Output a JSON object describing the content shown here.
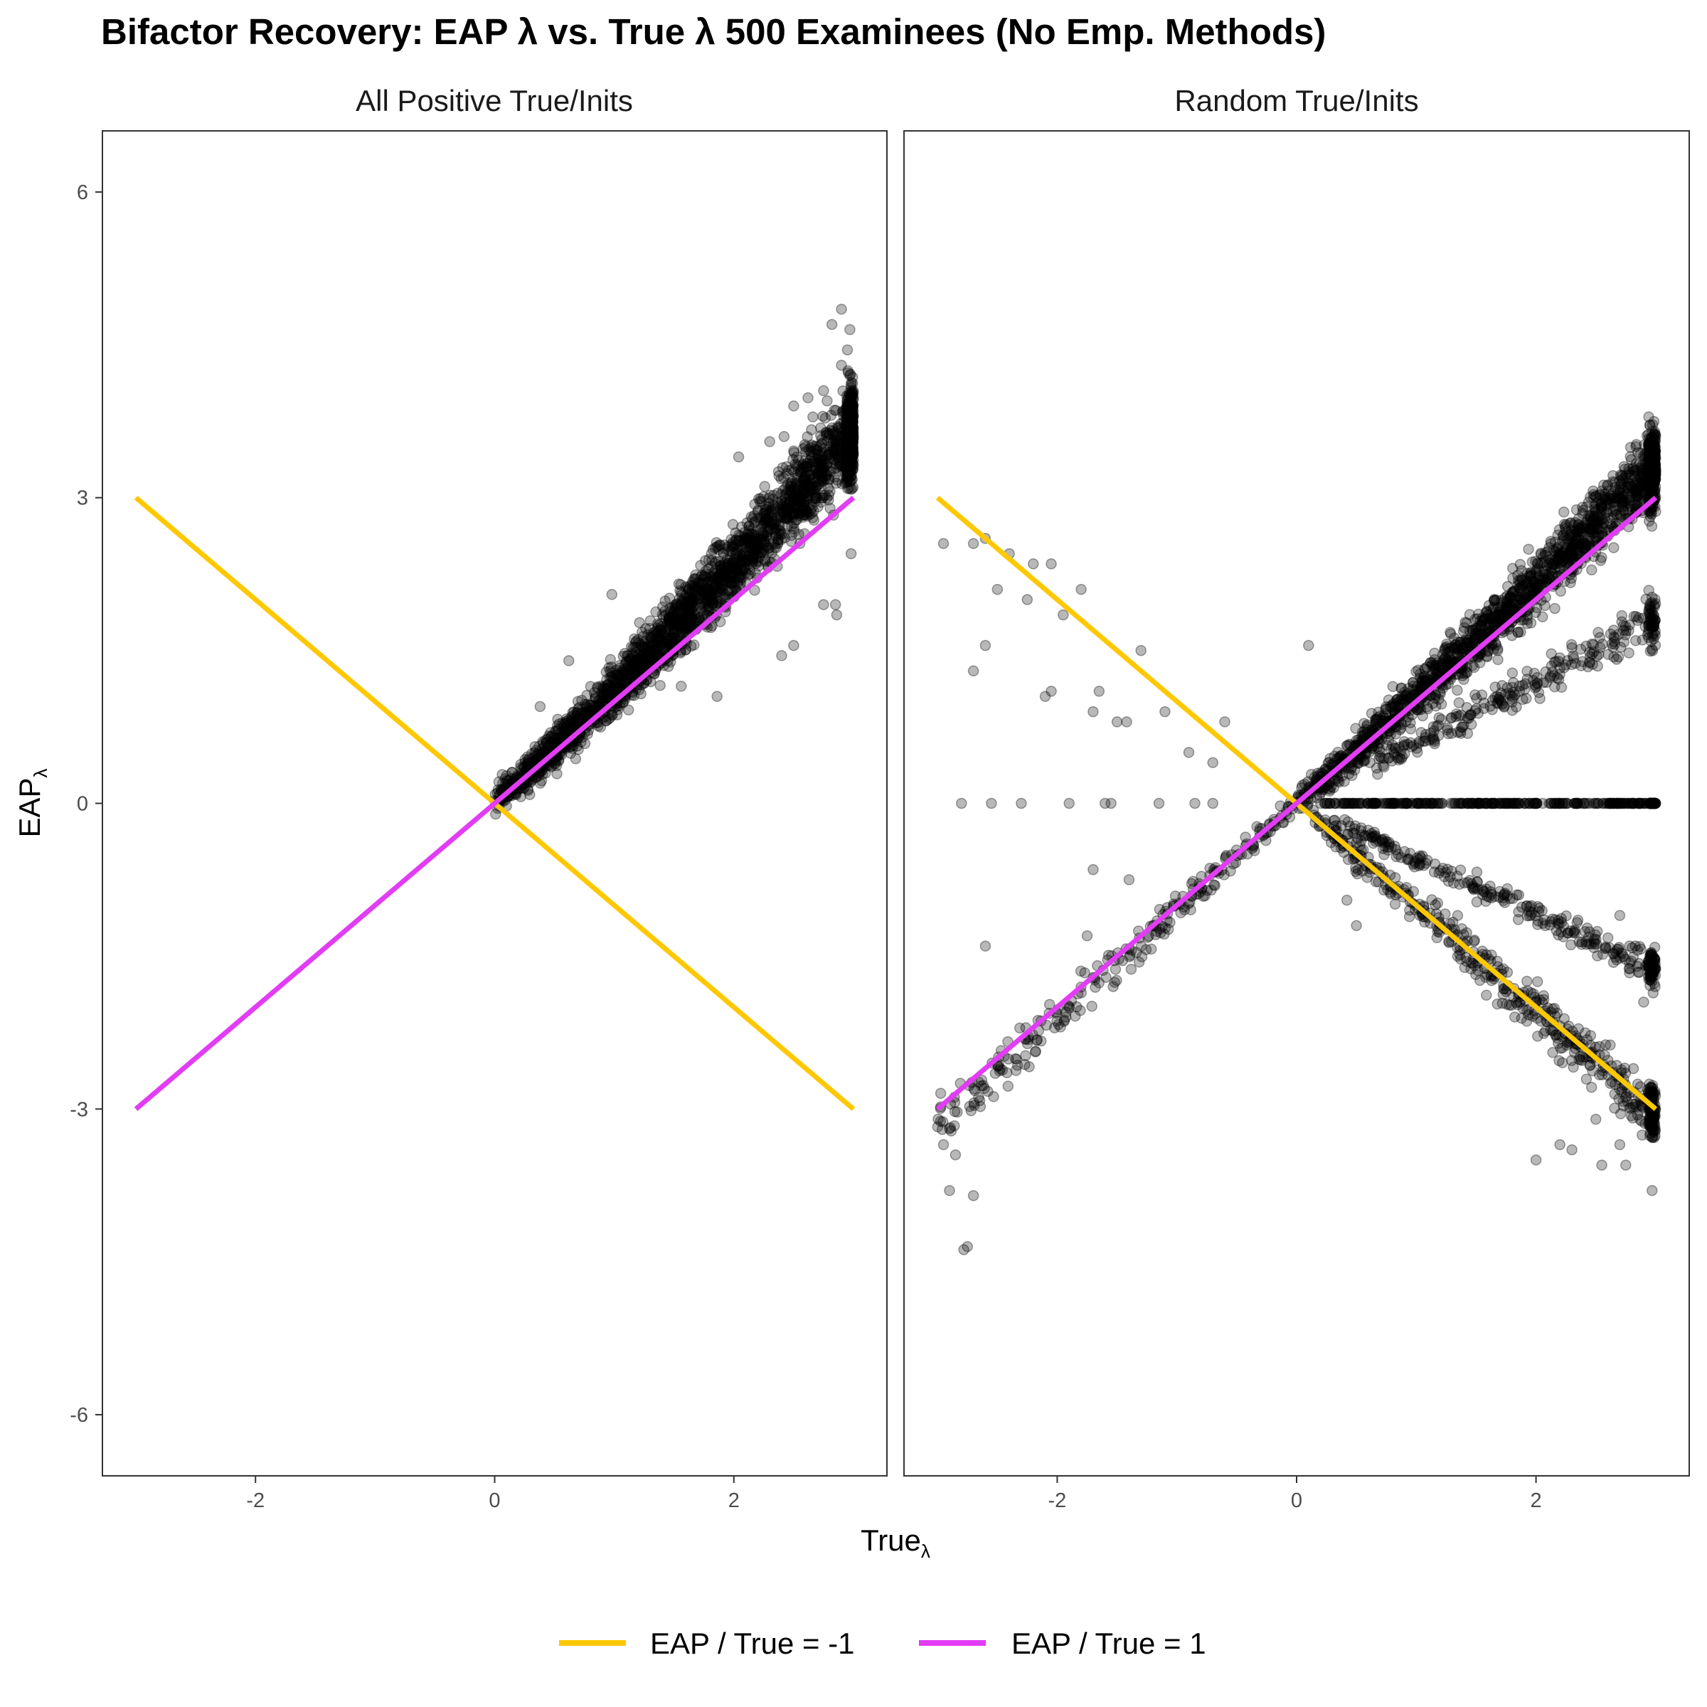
{
  "chart_data": {
    "type": "scatter",
    "title": "Bifactor Recovery: EAP λ vs. True λ 500 Examinees (No Emp. Methods)",
    "xlabel": "True",
    "xlabel_sub": "λ",
    "ylabel": "EAP",
    "ylabel_sub": "λ",
    "xlim": [
      -3.28,
      3.28
    ],
    "ylim": [
      -6.6,
      6.6
    ],
    "x_ticks": [
      -2,
      0,
      2
    ],
    "y_ticks": [
      6,
      3,
      0,
      -3,
      -6
    ],
    "grid": false,
    "legend_position": "bottom",
    "point_color": "#000000",
    "point_alpha": 0.28,
    "reference_lines": [
      {
        "name": "EAP / True = -1",
        "slope": -1,
        "x": [
          -3,
          3
        ],
        "color": "#FFC800"
      },
      {
        "name": "EAP / True = 1",
        "slope": 1,
        "x": [
          -3,
          3
        ],
        "color": "#E23CF5"
      }
    ],
    "panels": [
      {
        "title": "All Positive True/Inits",
        "series": [
          {
            "description": "dense band",
            "x_range": [
              0,
              3
            ],
            "slope": 1.07,
            "curve": 0.05,
            "spread": 0.32,
            "count": 2600
          },
          {
            "description": "upper outliers",
            "points": [
              [
                2.9,
                4.85
              ],
              [
                2.82,
                4.7
              ],
              [
                2.97,
                4.65
              ],
              [
                2.95,
                4.45
              ],
              [
                2.9,
                4.3
              ],
              [
                2.97,
                4.2
              ],
              [
                2.75,
                4.05
              ],
              [
                2.62,
                3.98
              ],
              [
                2.78,
                3.95
              ],
              [
                2.5,
                3.9
              ],
              [
                2.42,
                3.6
              ],
              [
                2.3,
                3.55
              ],
              [
                2.04,
                3.4
              ],
              [
                2.98,
                2.45
              ],
              [
                2.85,
                1.95
              ],
              [
                2.86,
                1.85
              ],
              [
                2.75,
                1.95
              ],
              [
                2.4,
                1.45
              ],
              [
                2.5,
                1.55
              ],
              [
                1.86,
                1.05
              ],
              [
                1.56,
                1.15
              ],
              [
                0.98,
                2.05
              ],
              [
                0.62,
                1.4
              ],
              [
                0.38,
                0.95
              ]
            ]
          }
        ]
      },
      {
        "title": "Random True/Inits",
        "series": [
          {
            "description": "main positive band",
            "x_range": [
              0,
              3
            ],
            "slope": 1.02,
            "curve": 0.03,
            "spread": 0.28,
            "count": 1800
          },
          {
            "description": "upper sub-band",
            "x_range": [
              0.6,
              3
            ],
            "slope": 0.6,
            "spread": 0.17,
            "count": 280
          },
          {
            "description": "zero estimates",
            "x_range": [
              0.2,
              3
            ],
            "constant": 0.0,
            "count": 360
          },
          {
            "description": "negated band",
            "x_range": [
              0.1,
              3
            ],
            "slope": -1.02,
            "spread": 0.2,
            "count": 520
          },
          {
            "description": "lower sub-band",
            "x_range": [
              0.3,
              3
            ],
            "slope": -0.55,
            "spread": 0.12,
            "count": 300
          },
          {
            "description": "negative true values",
            "x_range": [
              -3,
              0
            ],
            "slope": 1.05,
            "spread": 0.2,
            "count": 250
          },
          {
            "description": "outliers",
            "points": [
              [
                -2.95,
                2.55
              ],
              [
                -2.7,
                2.55
              ],
              [
                -2.6,
                2.6
              ],
              [
                -2.4,
                2.45
              ],
              [
                -2.2,
                2.35
              ],
              [
                -2.05,
                2.35
              ],
              [
                -2.5,
                2.1
              ],
              [
                -1.8,
                2.1
              ],
              [
                -1.95,
                1.85
              ],
              [
                -2.25,
                2.0
              ],
              [
                -2.6,
                1.55
              ],
              [
                -1.3,
                1.5
              ],
              [
                -2.7,
                1.3
              ],
              [
                -2.05,
                1.1
              ],
              [
                -2.1,
                1.05
              ],
              [
                -1.65,
                1.1
              ],
              [
                -1.7,
                0.9
              ],
              [
                -1.5,
                0.8
              ],
              [
                -1.42,
                0.8
              ],
              [
                -1.1,
                0.9
              ],
              [
                -0.9,
                0.5
              ],
              [
                -0.6,
                0.8
              ],
              [
                -0.7,
                0.4
              ],
              [
                -2.8,
                0.0
              ],
              [
                -2.55,
                0.0
              ],
              [
                -2.3,
                0.0
              ],
              [
                -1.9,
                0.0
              ],
              [
                -1.6,
                0.0
              ],
              [
                -1.55,
                0.0
              ],
              [
                -1.15,
                0.0
              ],
              [
                -0.85,
                0.0
              ],
              [
                -0.7,
                0.0
              ],
              [
                0.1,
                1.55
              ],
              [
                0.55,
                0.7
              ],
              [
                0.42,
                -0.95
              ],
              [
                0.5,
                -1.2
              ],
              [
                -2.75,
                -4.35
              ],
              [
                -2.78,
                -4.38
              ],
              [
                -2.9,
                -3.8
              ],
              [
                -2.7,
                -3.85
              ],
              [
                -2.85,
                -3.45
              ],
              [
                -2.95,
                -3.35
              ],
              [
                -2.6,
                -1.4
              ],
              [
                -1.75,
                -1.3
              ],
              [
                -1.4,
                -0.75
              ],
              [
                -1.7,
                -0.65
              ],
              [
                2.3,
                -3.4
              ],
              [
                2.55,
                -3.55
              ],
              [
                2.75,
                -3.55
              ],
              [
                2.97,
                -3.8
              ],
              [
                2.0,
                -3.5
              ],
              [
                2.7,
                -3.35
              ],
              [
                2.9,
                -2.9
              ],
              [
                2.2,
                -3.35
              ],
              [
                2.5,
                -3.1
              ],
              [
                2.7,
                -1.1
              ],
              [
                2.95,
                -1.5
              ],
              [
                2.9,
                -1.95
              ]
            ]
          }
        ]
      }
    ]
  }
}
